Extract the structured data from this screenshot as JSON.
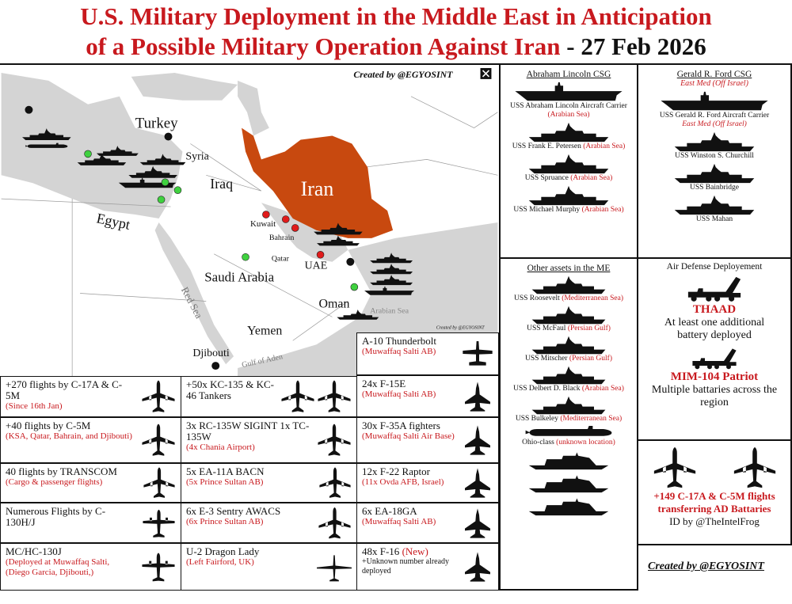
{
  "title": {
    "line1": "U.S. Military Deployment in the Middle East in Anticipation",
    "line2": "of a Possible Military Operation Against Iran",
    "date": " - 27 Feb 2026"
  },
  "colors": {
    "accent_red": "#c8191e",
    "iran": "#c8490f",
    "sea": "#d4d4d4",
    "green_dot": "#3fd13f",
    "red_dot": "#e01b1b"
  },
  "map": {
    "credit": "Created by @EGYOSINT",
    "credit_icon": "x-logo-icon",
    "small_credit": "Created by @EGYOSINT",
    "labels": {
      "turkey": "Turkey",
      "syria": "Syria",
      "iraq": "Iraq",
      "iran": "Iran",
      "egypt": "Egypt",
      "kuwait": "Kuwait",
      "bahrain": "Bahrain",
      "qatar": "Qatar",
      "uae": "UAE",
      "saudi": "Saudi Arabia",
      "oman": "Oman",
      "arabian_sea": "Arabian Sea",
      "yemen": "Yemen",
      "red_sea": "Red Sea",
      "djibouti": "Djibouti",
      "gulf_aden": "Gulf of Aden"
    }
  },
  "air_assets": [
    {
      "main": "+270 flights by C-17A & C-5M",
      "sub": "(Since 16th Jan)",
      "icon": "transport-plane-icon"
    },
    {
      "main": "+40 flights by C-5M",
      "sub": "(KSA, Qatar, Bahrain, and Djibouti)",
      "icon": "transport-plane-icon"
    },
    {
      "main": "40 flights by TRANSCOM",
      "sub": "(Cargo & passenger flights)",
      "icon": "transport-plane-icon"
    },
    {
      "main": "Numerous Flights by C-130H/J",
      "sub": "",
      "icon": "turboprop-plane-icon"
    },
    {
      "main": "MC/HC-130J",
      "sub": "(Deployed at Muwaffaq Salti, (Diego Garcia, Djibouti,)",
      "icon": "turboprop-plane-icon"
    },
    {
      "main": "+50x KC-135 & KC-46 Tankers",
      "sub": "",
      "icon": "tanker-plane-icon"
    },
    {
      "main": "3x RC-135W SIGINT 1x TC-135W",
      "sub": "(4x Chania Airport)",
      "icon": "recon-plane-icon"
    },
    {
      "main": "5x EA-11A BACN",
      "sub": "(5x Prince Sultan AB)",
      "icon": "bizjet-plane-icon"
    },
    {
      "main": "6x E-3 Sentry AWACS",
      "sub": "(6x Prince Sultan AB)",
      "icon": "awacs-plane-icon"
    },
    {
      "main": "U-2 Dragon Lady",
      "sub": "(Left Fairford, UK)",
      "icon": "glider-plane-icon"
    },
    {
      "main": "A-10 Thunderbolt",
      "sub": "(Muwaffaq Salti AB)",
      "icon": "attack-plane-icon"
    },
    {
      "main": "24x F-15E",
      "sub": "(Muwaffaq Salti AB)",
      "icon": "fighter-jet-icon"
    },
    {
      "main": "30x F-35A fighters",
      "sub": "(Muwaffaq Salti Air Base)",
      "icon": "fighter-jet-icon"
    },
    {
      "main": "12x F-22 Raptor",
      "sub": "(11x Ovda AFB, Israel)",
      "icon": "fighter-jet-icon"
    },
    {
      "main": "6x EA-18GA",
      "sub": "(Muwaffaq Salti AB)",
      "icon": "fighter-jet-icon"
    },
    {
      "main": "48x F-16 ",
      "new": "(New)",
      "sub2": "+Unknown number already deployed",
      "icon": "fighter-jet-icon"
    }
  ],
  "lincoln": {
    "heading": "Abraham Lincoln CSG",
    "ships": [
      {
        "name": "USS Abraham Lincoln Aircraft Carrier",
        "loc": "(Arabian Sea)"
      },
      {
        "name": "USS Frank E. Petersen ",
        "loc": "(Arabian Sea)"
      },
      {
        "name": "USS Spruance ",
        "loc": "(Arabian Sea)"
      },
      {
        "name": "USS Michael Murphy  ",
        "loc": "(Arabian Sea)"
      }
    ]
  },
  "ford": {
    "heading": "Gerald R. Ford CSG",
    "heading_loc": "East Med (Off Israel)",
    "ships": [
      {
        "name": "USS Gerald R. Ford Aircraft Carrier",
        "loc": "East Med (Off Israel)"
      },
      {
        "name": "USS Winston S. Churchill",
        "loc": ""
      },
      {
        "name": "USS Bainbridge",
        "loc": ""
      },
      {
        "name": "USS Mahan",
        "loc": ""
      }
    ]
  },
  "other": {
    "heading": "Other assets in the ME",
    "ships": [
      {
        "name": "USS Roosevelt  ",
        "loc": "(Mediterranean Sea)"
      },
      {
        "name": "USS McFaul  ",
        "loc": "(Persian Gulf)"
      },
      {
        "name": "USS Mitscher ",
        "loc": "(Persian Gulf)"
      },
      {
        "name": "USS Delbert D. Black ",
        "loc": "(Arabian Sea)"
      },
      {
        "name": "USS Bulkeley ",
        "loc": "(Mediterranean Sea)"
      },
      {
        "name": "Ohio-class ",
        "loc": "(unknown location)"
      }
    ]
  },
  "air_defense": {
    "heading": "Air Defense Deployement",
    "thaad": "THAAD",
    "thaad_desc": "At least one additional battery deployed",
    "patriot": "MIM-104 Patriot",
    "patriot_desc": "Multiple battaries across the region"
  },
  "transfer": {
    "line1": "+149 C-17A & C-5M flights transferring AD Battaries",
    "line2": "ID by @TheIntelFrog"
  },
  "footer_credit": "Created by @EGYOSINT"
}
